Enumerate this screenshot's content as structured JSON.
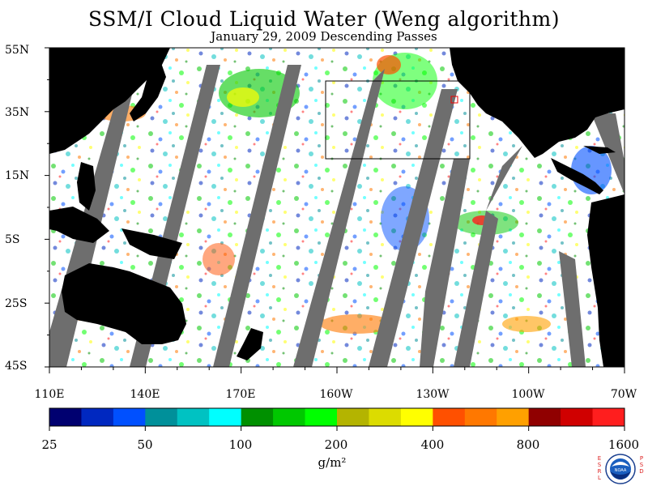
{
  "title": "SSM/I Cloud Liquid Water (Weng algorithm)",
  "subtitle": "January 29, 2009  Descending Passes",
  "latitude_labels": [
    "55N",
    "35N",
    "15N",
    "5S",
    "25S",
    "45S"
  ],
  "longitude_labels": [
    "110E",
    "140E",
    "170E",
    "160W",
    "130W",
    "100W",
    "70W"
  ],
  "colorbar": {
    "colors": [
      "#000070",
      "#0028c0",
      "#0050ff",
      "#00909a",
      "#00c2c2",
      "#00ffff",
      "#009000",
      "#00c800",
      "#00ff00",
      "#b4b400",
      "#dcdc00",
      "#ffff00",
      "#ff5000",
      "#ff7800",
      "#ffa000",
      "#900000",
      "#d00000",
      "#ff1e1e"
    ],
    "tick_labels": [
      "25",
      "50",
      "100",
      "200",
      "400",
      "800",
      "1600"
    ],
    "units": "g/m²"
  },
  "map_colors": {
    "land": "#000000",
    "no_data_swath": "#6e6e6e",
    "background": "#ffffff"
  },
  "logo": {
    "left_text": "ESRL",
    "right_text": "PSD",
    "badge_text": "NOAA"
  }
}
